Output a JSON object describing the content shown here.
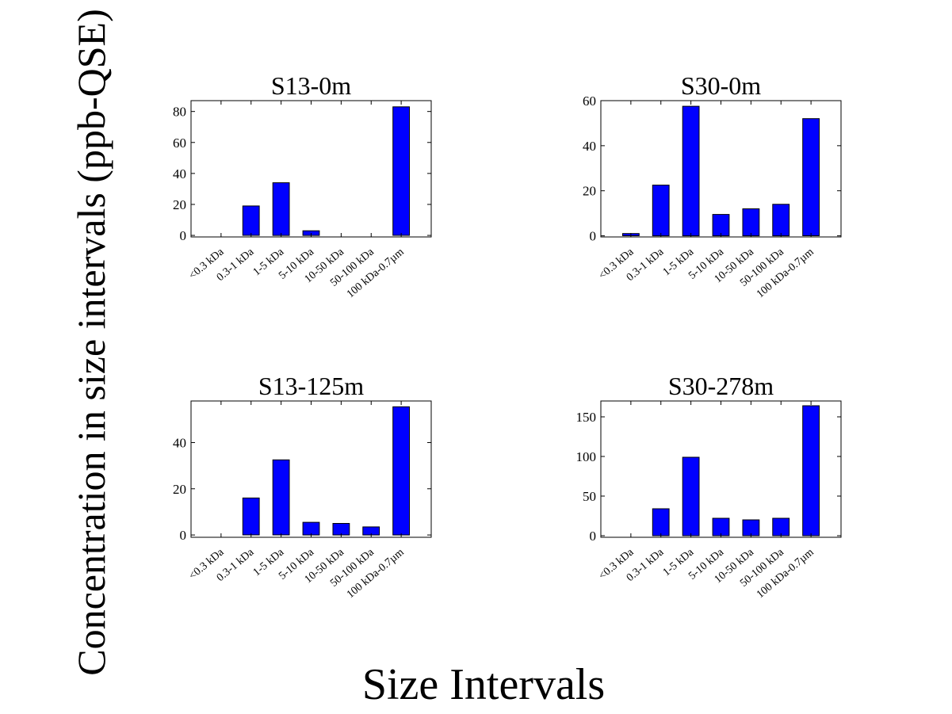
{
  "figure": {
    "ylabel": "Concentration in size intervals (ppb-QSE)",
    "xlabel": "Size Intervals",
    "bar_color": "#0000ff"
  },
  "chart_data": [
    {
      "type": "bar",
      "title": "S13-0m",
      "categories": [
        "<0.3 kDa",
        "0.3-1 kDa",
        "1-5 kDa",
        "5-10 kDa",
        "10-50 kDa",
        "50-100 kDa",
        "100 kDa-0.7µm"
      ],
      "values": [
        0,
        19,
        34,
        3,
        0,
        0,
        83
      ],
      "ylim": [
        -1,
        87
      ],
      "yticks": [
        0,
        20,
        40,
        60,
        80
      ],
      "xlabel": "",
      "ylabel": ""
    },
    {
      "type": "bar",
      "title": "S30-0m",
      "categories": [
        "<0.3 kDa",
        "0.3-1 kDa",
        "1-5 kDa",
        "5-10 kDa",
        "10-50 kDa",
        "50-100 kDa",
        "100 kDa-0.7µm"
      ],
      "values": [
        1,
        22.5,
        57.5,
        9.5,
        12,
        14,
        52
      ],
      "ylim": [
        -0.5,
        60
      ],
      "yticks": [
        0,
        20,
        40,
        60
      ],
      "xlabel": "",
      "ylabel": ""
    },
    {
      "type": "bar",
      "title": "S13-125m",
      "categories": [
        "<0.3 kDa",
        "0.3-1 kDa",
        "1-5 kDa",
        "5-10 kDa",
        "10-50 kDa",
        "50-100 kDa",
        "100 kDa-0.7µm"
      ],
      "values": [
        0,
        16,
        32.5,
        5.5,
        5,
        3.5,
        55.5
      ],
      "ylim": [
        -1,
        58
      ],
      "yticks": [
        0,
        20,
        40
      ],
      "xlabel": "",
      "ylabel": ""
    },
    {
      "type": "bar",
      "title": "S30-278m",
      "categories": [
        "<0.3 kDa",
        "0.3-1 kDa",
        "1-5 kDa",
        "5-10 kDa",
        "10-50 kDa",
        "50-100 kDa",
        "100 kDa-0.7µm"
      ],
      "values": [
        0,
        34,
        99,
        22,
        20,
        22,
        164
      ],
      "ylim": [
        -2,
        170
      ],
      "yticks": [
        0,
        50,
        100,
        150
      ],
      "xlabel": "",
      "ylabel": ""
    }
  ]
}
